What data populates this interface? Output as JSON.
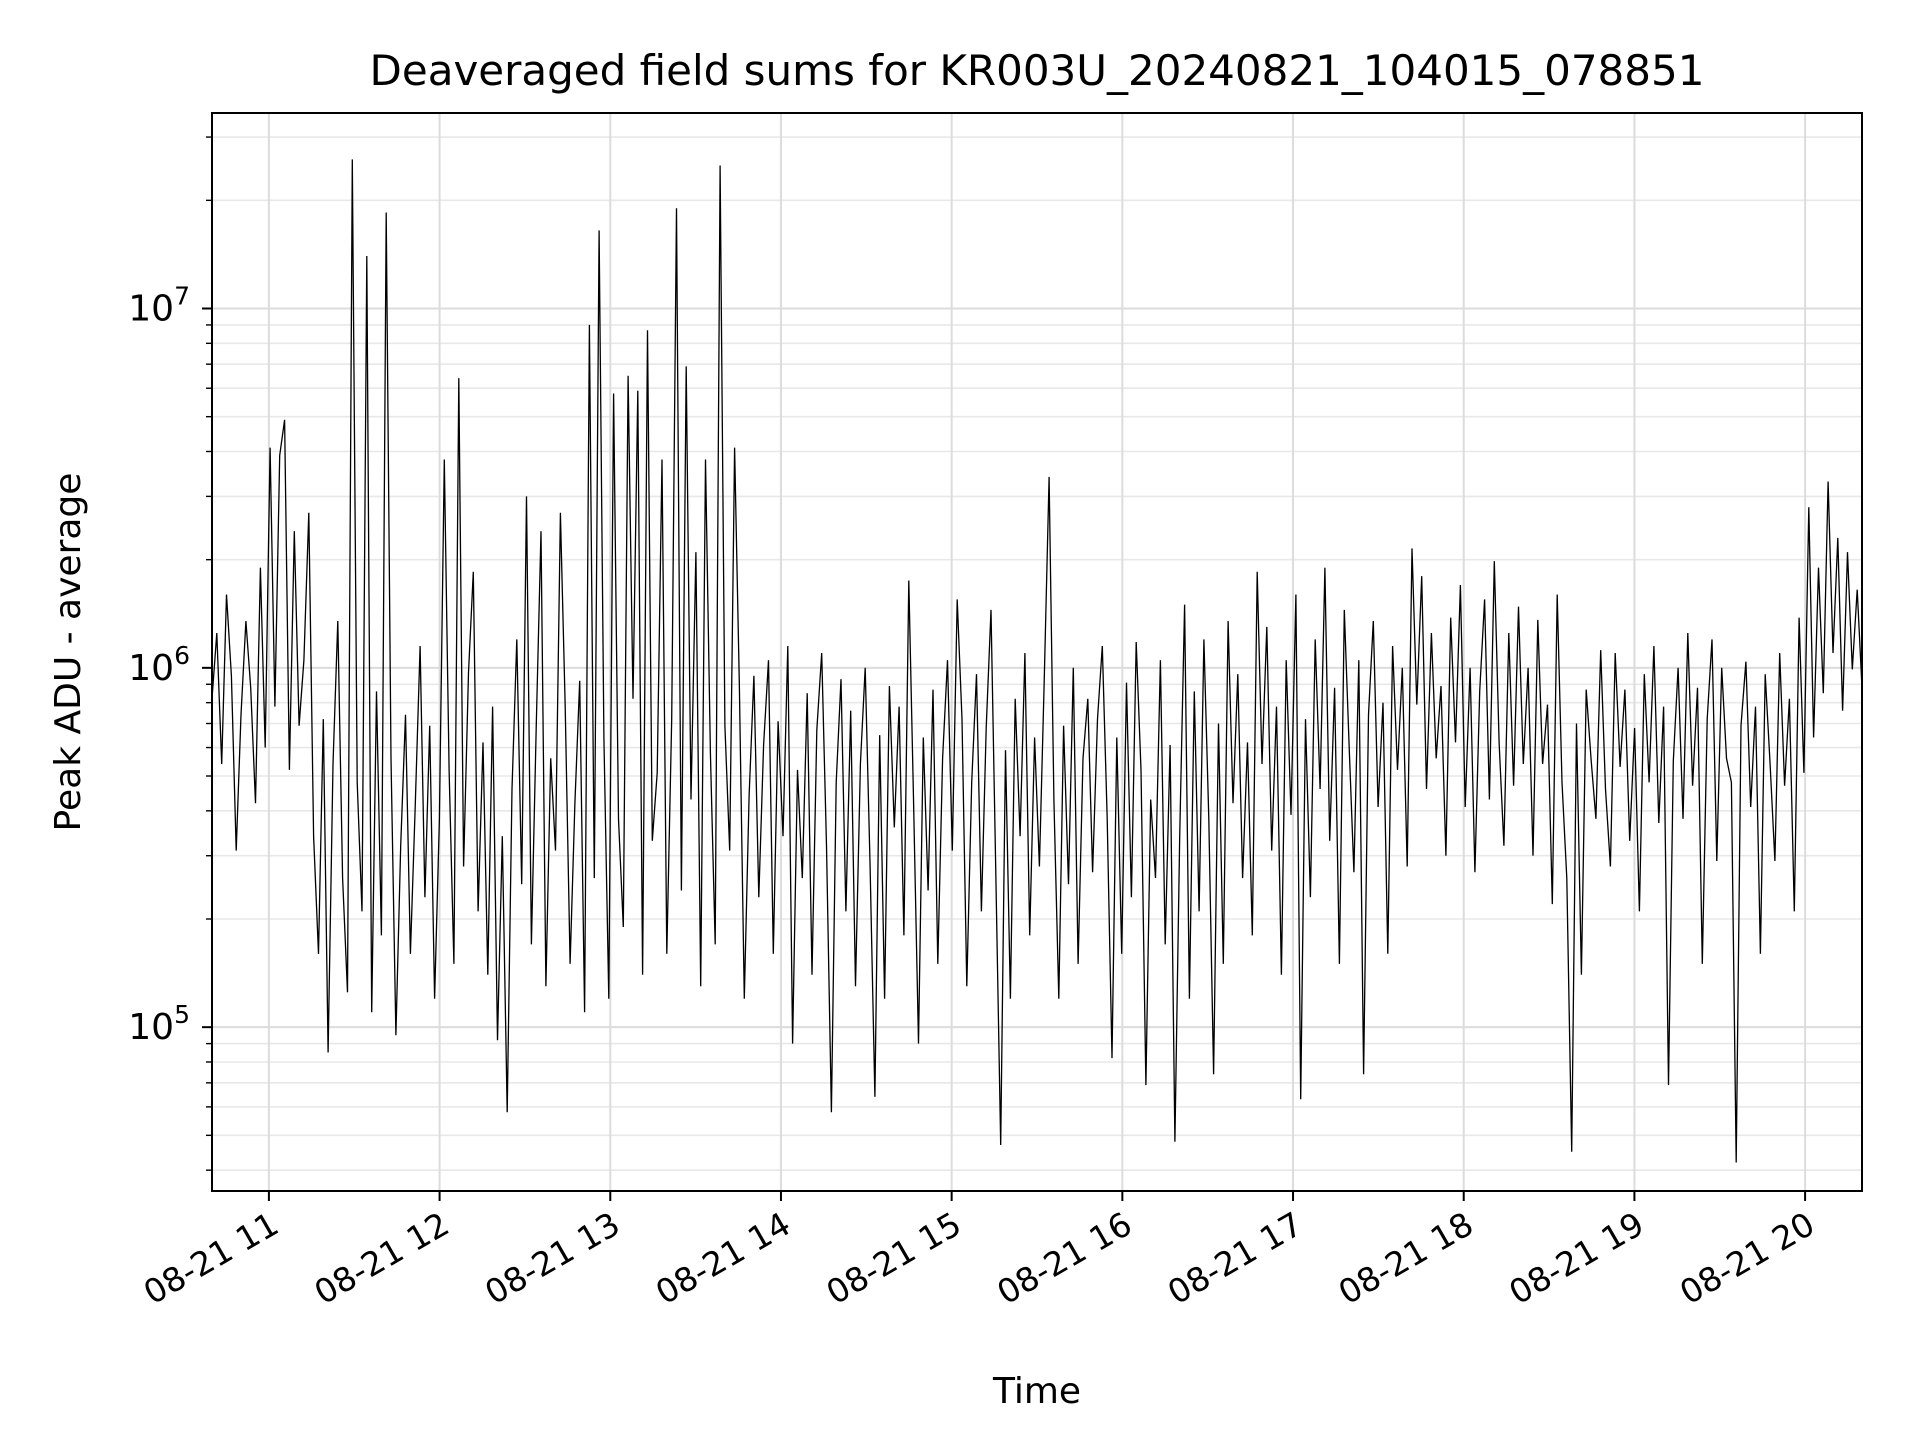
{
  "chart_data": {
    "type": "line",
    "title": "Deaveraged field sums for KR003U_20240821_104015_078851",
    "xlabel": "Time",
    "ylabel": "Peak ADU - average",
    "x_tick_labels": [
      "08-21 11",
      "08-21 12",
      "08-21 13",
      "08-21 14",
      "08-21 15",
      "08-21 16",
      "08-21 17",
      "08-21 18",
      "08-21 19",
      "08-21 20"
    ],
    "y_tick_labels": [
      {
        "base": "10",
        "exp": "5",
        "value": 100000
      },
      {
        "base": "10",
        "exp": "6",
        "value": 1000000
      },
      {
        "base": "10",
        "exp": "7",
        "value": 10000000
      }
    ],
    "xlim": [
      "2024-08-21 10:40",
      "2024-08-21 20:20"
    ],
    "ylim": [
      35000,
      35000000
    ],
    "yscale": "log",
    "grid": true,
    "series": [
      {
        "color": "#000000",
        "x_start": "2024-08-21 10:40",
        "x_end": "2024-08-21 20:20",
        "values": [
          820000,
          1250000,
          540000,
          1600000,
          950000,
          310000,
          740000,
          1350000,
          880000,
          420000,
          1900000,
          600000,
          4100000,
          780000,
          3900000,
          4900000,
          520000,
          2400000,
          690000,
          1050000,
          2700000,
          340000,
          160000,
          720000,
          85000,
          540000,
          1350000,
          260000,
          125000,
          26000000,
          480000,
          210000,
          14000000,
          110000,
          860000,
          180000,
          18500000,
          560000,
          95000,
          320000,
          740000,
          160000,
          410000,
          1150000,
          230000,
          690000,
          120000,
          380000,
          3800000,
          520000,
          150000,
          6400000,
          280000,
          970000,
          1850000,
          210000,
          620000,
          140000,
          780000,
          92000,
          340000,
          58000,
          460000,
          1200000,
          250000,
          3000000,
          170000,
          680000,
          2400000,
          130000,
          560000,
          310000,
          2700000,
          780000,
          150000,
          420000,
          920000,
          110000,
          9000000,
          260000,
          16500000,
          640000,
          120000,
          5800000,
          380000,
          190000,
          6500000,
          820000,
          5900000,
          140000,
          8700000,
          330000,
          510000,
          3800000,
          160000,
          720000,
          19000000,
          240000,
          6900000,
          430000,
          2100000,
          130000,
          3800000,
          580000,
          170000,
          25000000,
          690000,
          310000,
          4100000,
          880000,
          120000,
          440000,
          950000,
          230000,
          610000,
          1050000,
          160000,
          710000,
          340000,
          1150000,
          90000,
          520000,
          260000,
          850000,
          140000,
          670000,
          1100000,
          320000,
          58000,
          480000,
          930000,
          210000,
          760000,
          130000,
          540000,
          1000000,
          280000,
          64000,
          650000,
          120000,
          890000,
          360000,
          780000,
          180000,
          1750000,
          420000,
          90000,
          640000,
          240000,
          870000,
          150000,
          560000,
          1050000,
          310000,
          1550000,
          720000,
          130000,
          480000,
          960000,
          210000,
          680000,
          1450000,
          260000,
          47000,
          590000,
          120000,
          820000,
          340000,
          1100000,
          180000,
          640000,
          280000,
          940000,
          3400000,
          430000,
          120000,
          690000,
          250000,
          1000000,
          150000,
          560000,
          820000,
          270000,
          720000,
          1150000,
          380000,
          82000,
          640000,
          160000,
          910000,
          230000,
          1180000,
          520000,
          69000,
          430000,
          260000,
          1050000,
          170000,
          610000,
          48000,
          340000,
          1500000,
          120000,
          860000,
          210000,
          1200000,
          380000,
          74000,
          700000,
          150000,
          1350000,
          420000,
          960000,
          260000,
          620000,
          180000,
          1850000,
          540000,
          1300000,
          310000,
          780000,
          140000,
          1050000,
          390000,
          1600000,
          63000,
          720000,
          230000,
          1200000,
          460000,
          1900000,
          330000,
          880000,
          150000,
          1450000,
          610000,
          270000,
          1050000,
          74000,
          740000,
          1350000,
          410000,
          800000,
          160000,
          1150000,
          520000,
          1000000,
          280000,
          2150000,
          790000,
          1800000,
          460000,
          1250000,
          560000,
          890000,
          300000,
          1380000,
          620000,
          1700000,
          410000,
          1000000,
          270000,
          860000,
          1550000,
          430000,
          1980000,
          620000,
          320000,
          1250000,
          470000,
          1480000,
          540000,
          1000000,
          300000,
          1360000,
          540000,
          790000,
          220000,
          1600000,
          480000,
          260000,
          45000,
          700000,
          140000,
          870000,
          560000,
          380000,
          1120000,
          460000,
          280000,
          1100000,
          530000,
          870000,
          330000,
          680000,
          210000,
          960000,
          480000,
          1150000,
          370000,
          780000,
          69000,
          550000,
          1000000,
          380000,
          1250000,
          470000,
          880000,
          150000,
          720000,
          1200000,
          290000,
          1000000,
          560000,
          480000,
          42000,
          690000,
          1040000,
          410000,
          780000,
          160000,
          960000,
          540000,
          290000,
          1100000,
          470000,
          820000,
          210000,
          1380000,
          510000,
          2800000,
          640000,
          1900000,
          850000,
          3300000,
          1100000,
          2300000,
          760000,
          2100000,
          990000,
          1650000,
          880000
        ]
      }
    ]
  }
}
